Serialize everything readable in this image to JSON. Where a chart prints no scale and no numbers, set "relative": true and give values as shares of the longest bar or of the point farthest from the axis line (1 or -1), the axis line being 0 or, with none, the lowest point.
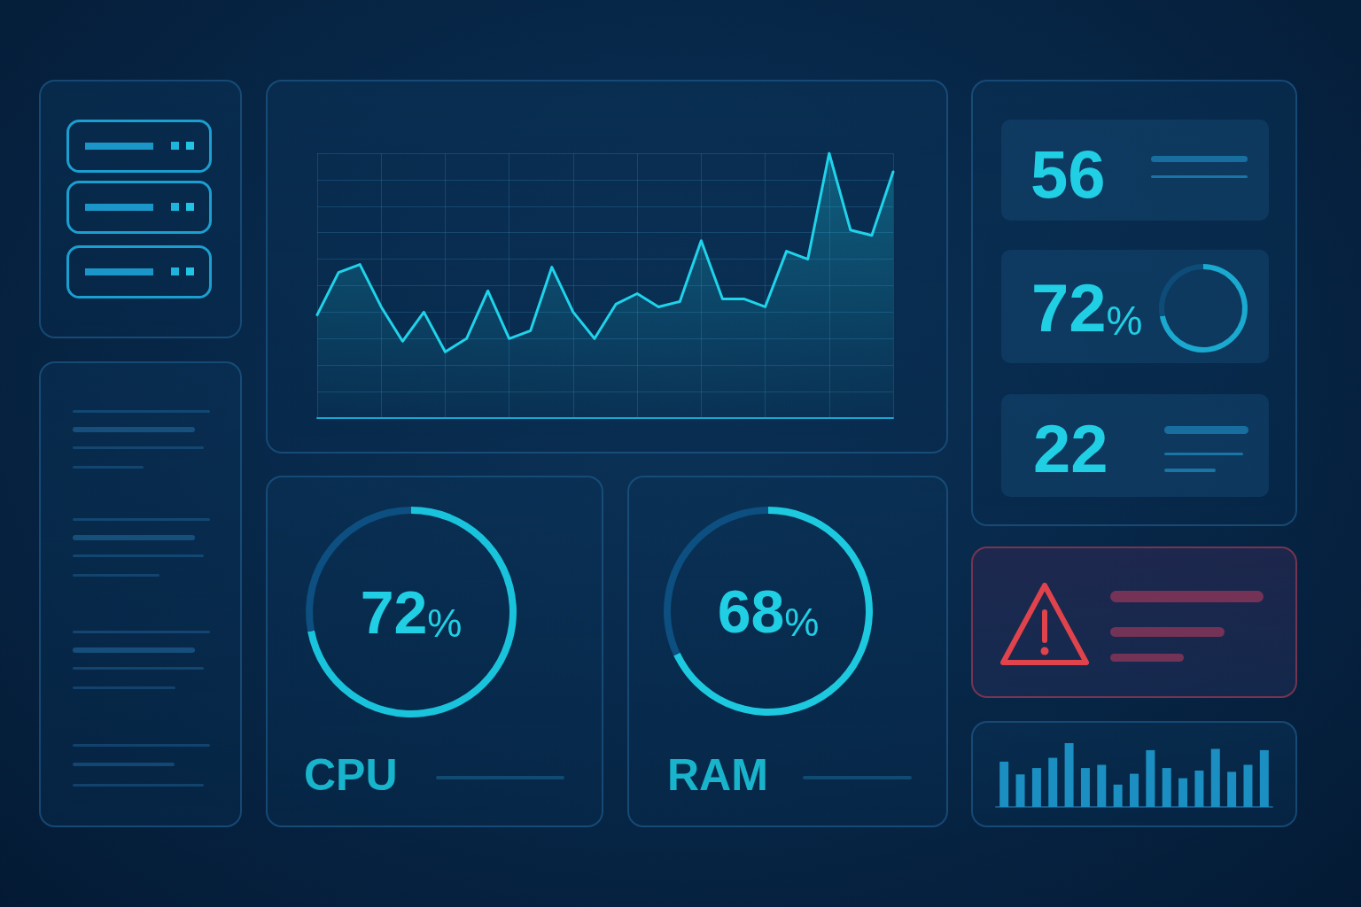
{
  "chart_data": [
    {
      "type": "area",
      "categories": [
        null,
        null,
        null,
        null,
        null,
        null,
        null,
        null,
        null,
        null,
        null,
        null,
        null,
        null,
        null,
        null,
        null,
        null,
        null,
        null,
        null,
        null,
        null,
        null,
        null,
        null,
        null,
        null
      ],
      "values": [
        0.39,
        0.55,
        0.58,
        0.42,
        0.29,
        0.4,
        0.25,
        0.3,
        0.48,
        0.3,
        0.33,
        0.57,
        0.4,
        0.3,
        0.43,
        0.47,
        0.42,
        0.44,
        0.67,
        0.45,
        0.45,
        0.42,
        0.63,
        0.6,
        1,
        0.71,
        0.69,
        0.93
      ],
      "color": "#1fd3ea",
      "relative": true,
      "grid": true,
      "marker": "none"
    },
    {
      "type": "other",
      "annotations": [
        "56",
        "72%",
        "22"
      ]
    },
    {
      "type": "donut",
      "categories": [
        null,
        null
      ],
      "values": [
        72,
        28
      ],
      "colors": [
        "#1aa9cf",
        "#0e4c78"
      ]
    },
    {
      "type": "donut",
      "title": "CPU",
      "categories": [
        null,
        null
      ],
      "values": [
        72,
        28
      ],
      "colors": [
        "#19c3dc",
        "#0c4f80"
      ],
      "value_labels": [
        "72%",
        null
      ]
    },
    {
      "type": "donut",
      "title": "RAM",
      "categories": [
        null,
        null
      ],
      "values": [
        68,
        32
      ],
      "colors": [
        "#1cc9df",
        "#0c4f80"
      ],
      "value_labels": [
        "68%",
        null
      ]
    },
    {
      "type": "bar",
      "categories": [
        null,
        null,
        null,
        null,
        null,
        null,
        null,
        null,
        null,
        null,
        null,
        null,
        null,
        null,
        null,
        null,
        null
      ],
      "values": [
        0.71,
        0.51,
        0.61,
        0.77,
        1,
        0.61,
        0.66,
        0.35,
        0.52,
        0.89,
        0.61,
        0.45,
        0.57,
        0.91,
        0.55,
        0.66,
        0.89
      ],
      "color": "#1b8fc2",
      "relative": true
    }
  ]
}
